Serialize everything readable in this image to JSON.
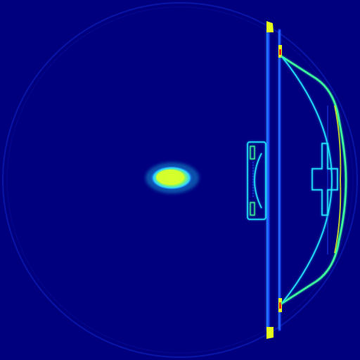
{
  "image": {
    "description_free": true,
    "palette": {
      "background": "#00007f",
      "faint_ring": "#0a1ab0",
      "structure_blue": "#1a4dff",
      "structure_cyan": "#23e6ff",
      "structure_green": "#3cff9c",
      "hot_yellow": "#e6ff1a",
      "hot_red": "#ff2a00"
    }
  }
}
